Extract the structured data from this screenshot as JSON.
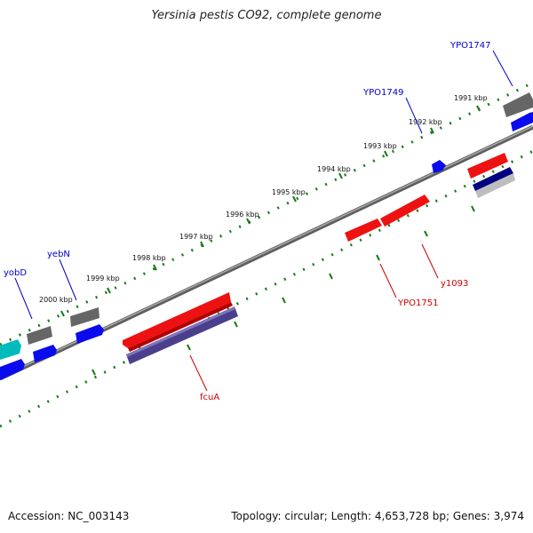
{
  "title": "Yersinia pestis CO92, complete genome",
  "footer": {
    "accession": "Accession: NC_003143",
    "summary": "Topology: circular; Length: 4,653,728 bp; Genes: 3,974"
  },
  "ruler_labels": [
    "2000 kbp",
    "1999 kbp",
    "1998 kbp",
    "1997 kbp",
    "1996 kbp",
    "1995 kbp",
    "1994 kbp",
    "1993 kbp",
    "1992 kbp",
    "1991 kbp"
  ],
  "genes": [
    {
      "name": "YPO1747",
      "color": "#0000cc"
    },
    {
      "name": "YPO1749",
      "color": "#0000cc"
    },
    {
      "name": "yebN",
      "color": "#0000cc"
    },
    {
      "name": "yobD",
      "color": "#0000cc"
    },
    {
      "name": "y1093",
      "color": "#cc0000"
    },
    {
      "name": "YPO1751",
      "color": "#cc0000"
    },
    {
      "name": "fcuA",
      "color": "#cc0000"
    }
  ],
  "colors": {
    "ruler": "#1a7a1a",
    "backbone": "#888888",
    "red_feature": "#ee1111",
    "blue_feature": "#0a0aee",
    "gray_feature": "#666666",
    "purple_feature": "#4a3f8c",
    "navy_feature": "#000080",
    "cyan_feature": "#00bbbb",
    "label_blue": "#0000cc",
    "label_red": "#cc0000"
  }
}
